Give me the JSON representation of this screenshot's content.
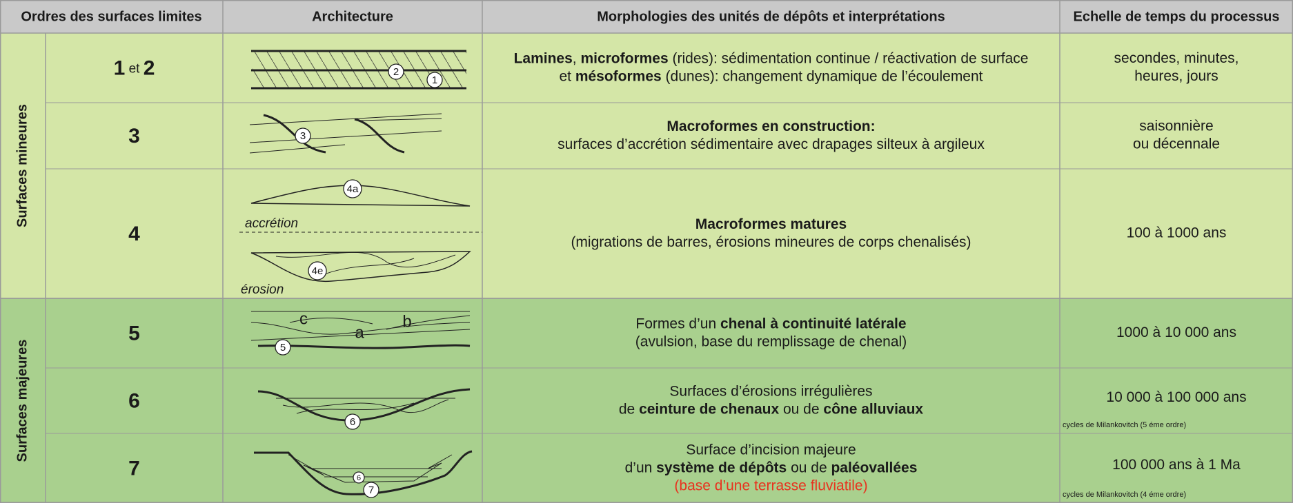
{
  "header": {
    "columns": [
      "Ordres des surfaces limites",
      "Architecture",
      "Morphologies des unités de dépôts et interprétations",
      "Echelle de temps du processus"
    ]
  },
  "groups": [
    {
      "label": "Surfaces mineures",
      "color": "#d4e6a7",
      "rows": [
        {
          "order": [
            {
              "text": "1",
              "bold": true
            },
            {
              "text": " et "
            },
            {
              "text": "2",
              "bold": true
            }
          ],
          "sketch_labels": [
            "2",
            "1"
          ],
          "morphology": [
            [
              {
                "text": "Lamines",
                "bold": true
              },
              {
                "text": ", "
              },
              {
                "text": "microformes",
                "bold": true
              },
              {
                "text": " (rides): sédimentation continue / réactivation de surface"
              }
            ],
            [
              {
                "text": "et "
              },
              {
                "text": "mésoformes",
                "bold": true
              },
              {
                "text": " (dunes): changement dynamique de l’écoulement"
              }
            ]
          ],
          "time": [
            "secondes, minutes,",
            "heures, jours"
          ]
        },
        {
          "order": [
            {
              "text": "3",
              "bold": true
            }
          ],
          "sketch_labels": [
            "3"
          ],
          "morphology": [
            [
              {
                "text": "Macroformes en construction:",
                "bold": true
              }
            ],
            [
              {
                "text": "surfaces d’accrétion sédimentaire avec drapages silteux à argileux"
              }
            ]
          ],
          "time": [
            "saisonnière",
            "ou décennale"
          ]
        },
        {
          "order": [
            {
              "text": "4",
              "bold": true
            }
          ],
          "sketch_labels": [
            "4a",
            "accrétion",
            "4e",
            "érosion"
          ],
          "morphology": [
            [
              {
                "text": "Macroformes matures",
                "bold": true
              }
            ],
            [
              {
                "text": "(migrations de barres, érosions mineures de corps chenalisés)"
              }
            ]
          ],
          "time": [
            "100 à 1000 ans"
          ]
        }
      ]
    },
    {
      "label": "Surfaces majeures",
      "color": "#a9d08e",
      "rows": [
        {
          "order": [
            {
              "text": "5",
              "bold": true
            }
          ],
          "sketch_labels": [
            "c",
            "a",
            "b",
            "5"
          ],
          "morphology": [
            [
              {
                "text": "Formes d’un "
              },
              {
                "text": "chenal à continuité latérale",
                "bold": true
              }
            ],
            [
              {
                "text": "(avulsion, base du remplissage de chenal)"
              }
            ]
          ],
          "time": [
            "1000 à 10 000 ans"
          ]
        },
        {
          "order": [
            {
              "text": "6",
              "bold": true
            }
          ],
          "sketch_labels": [
            "6"
          ],
          "morphology": [
            [
              {
                "text": "Surfaces d’érosions irrégulières"
              }
            ],
            [
              {
                "text": "de "
              },
              {
                "text": "ceinture de chenaux",
                "bold": true
              },
              {
                "text": " ou de "
              },
              {
                "text": "cône alluviaux",
                "bold": true
              }
            ]
          ],
          "time": [
            "10 000 à 100 000 ans"
          ],
          "time_note": "cycles de Milankovitch (5 éme ordre)"
        },
        {
          "order": [
            {
              "text": "7",
              "bold": true
            }
          ],
          "sketch_labels": [
            "6",
            "7"
          ],
          "morphology": [
            [
              {
                "text": "Surface d’incision majeure"
              }
            ],
            [
              {
                "text": "d’un "
              },
              {
                "text": "système de dépôts",
                "bold": true
              },
              {
                "text": " ou de "
              },
              {
                "text": "paléovallées",
                "bold": true
              }
            ],
            [
              {
                "text": "(base d’une terrasse fluviatile)",
                "color": "#e8321e"
              }
            ]
          ],
          "time": [
            "100 000 ans à 1 Ma"
          ],
          "time_note": "cycles de Milankovitch (4 éme ordre)"
        }
      ]
    }
  ]
}
